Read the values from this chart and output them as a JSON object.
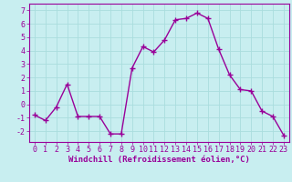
{
  "x": [
    0,
    1,
    2,
    3,
    4,
    5,
    6,
    7,
    8,
    9,
    10,
    11,
    12,
    13,
    14,
    15,
    16,
    17,
    18,
    19,
    20,
    21,
    22,
    23
  ],
  "y": [
    -0.8,
    -1.2,
    -0.2,
    1.5,
    -0.9,
    -0.9,
    -0.9,
    -2.2,
    -2.2,
    2.7,
    4.3,
    3.9,
    4.8,
    6.3,
    6.4,
    6.8,
    6.4,
    4.1,
    2.2,
    1.1,
    1.0,
    -0.5,
    -0.9,
    -2.3
  ],
  "line_color": "#990099",
  "marker": "+",
  "marker_size": 4,
  "linewidth": 1.0,
  "bg_color": "#c8eef0",
  "grid_color": "#aadddd",
  "xlabel": "Windchill (Refroidissement éolien,°C)",
  "xlim": [
    -0.5,
    23.5
  ],
  "ylim": [
    -2.8,
    7.5
  ],
  "yticks": [
    -2,
    -1,
    0,
    1,
    2,
    3,
    4,
    5,
    6,
    7
  ],
  "xticks": [
    0,
    1,
    2,
    3,
    4,
    5,
    6,
    7,
    8,
    9,
    10,
    11,
    12,
    13,
    14,
    15,
    16,
    17,
    18,
    19,
    20,
    21,
    22,
    23
  ],
  "tick_color": "#990099",
  "label_color": "#990099",
  "label_fontsize": 6.5,
  "tick_fontsize": 6.0,
  "spine_color": "#990099"
}
